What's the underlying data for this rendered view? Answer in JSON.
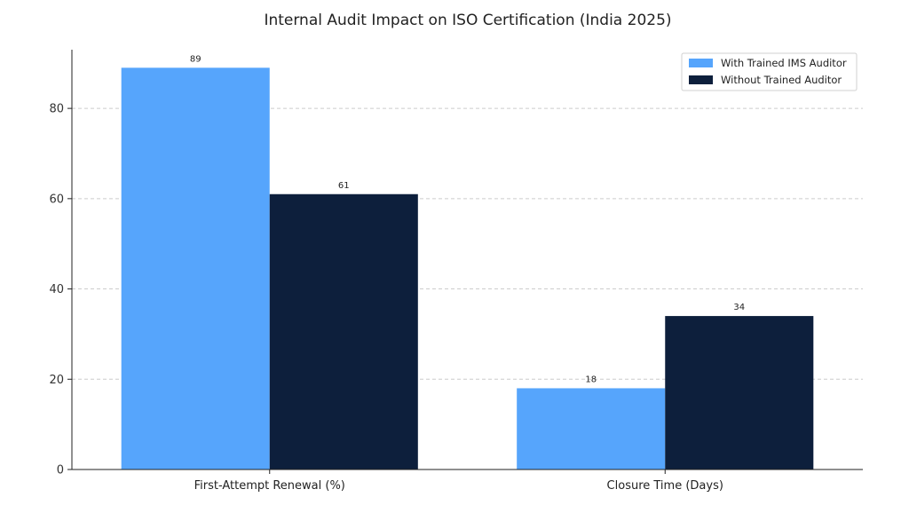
{
  "chart_data": {
    "type": "bar",
    "title": "Internal Audit Impact on ISO Certification (India 2025)",
    "xlabel": "",
    "ylabel": "",
    "categories": [
      "First-Attempt Renewal (%)",
      "Closure Time (Days)"
    ],
    "series": [
      {
        "name": "With Trained IMS Auditor",
        "values": [
          89,
          18
        ],
        "color": "#56a5fc"
      },
      {
        "name": "Without Trained Auditor",
        "values": [
          61,
          34
        ],
        "color": "#0d1f3c"
      }
    ],
    "ylim": [
      0,
      93
    ],
    "yticks": [
      0,
      20,
      40,
      60,
      80
    ],
    "grid": true,
    "legend_position": "top-right"
  }
}
